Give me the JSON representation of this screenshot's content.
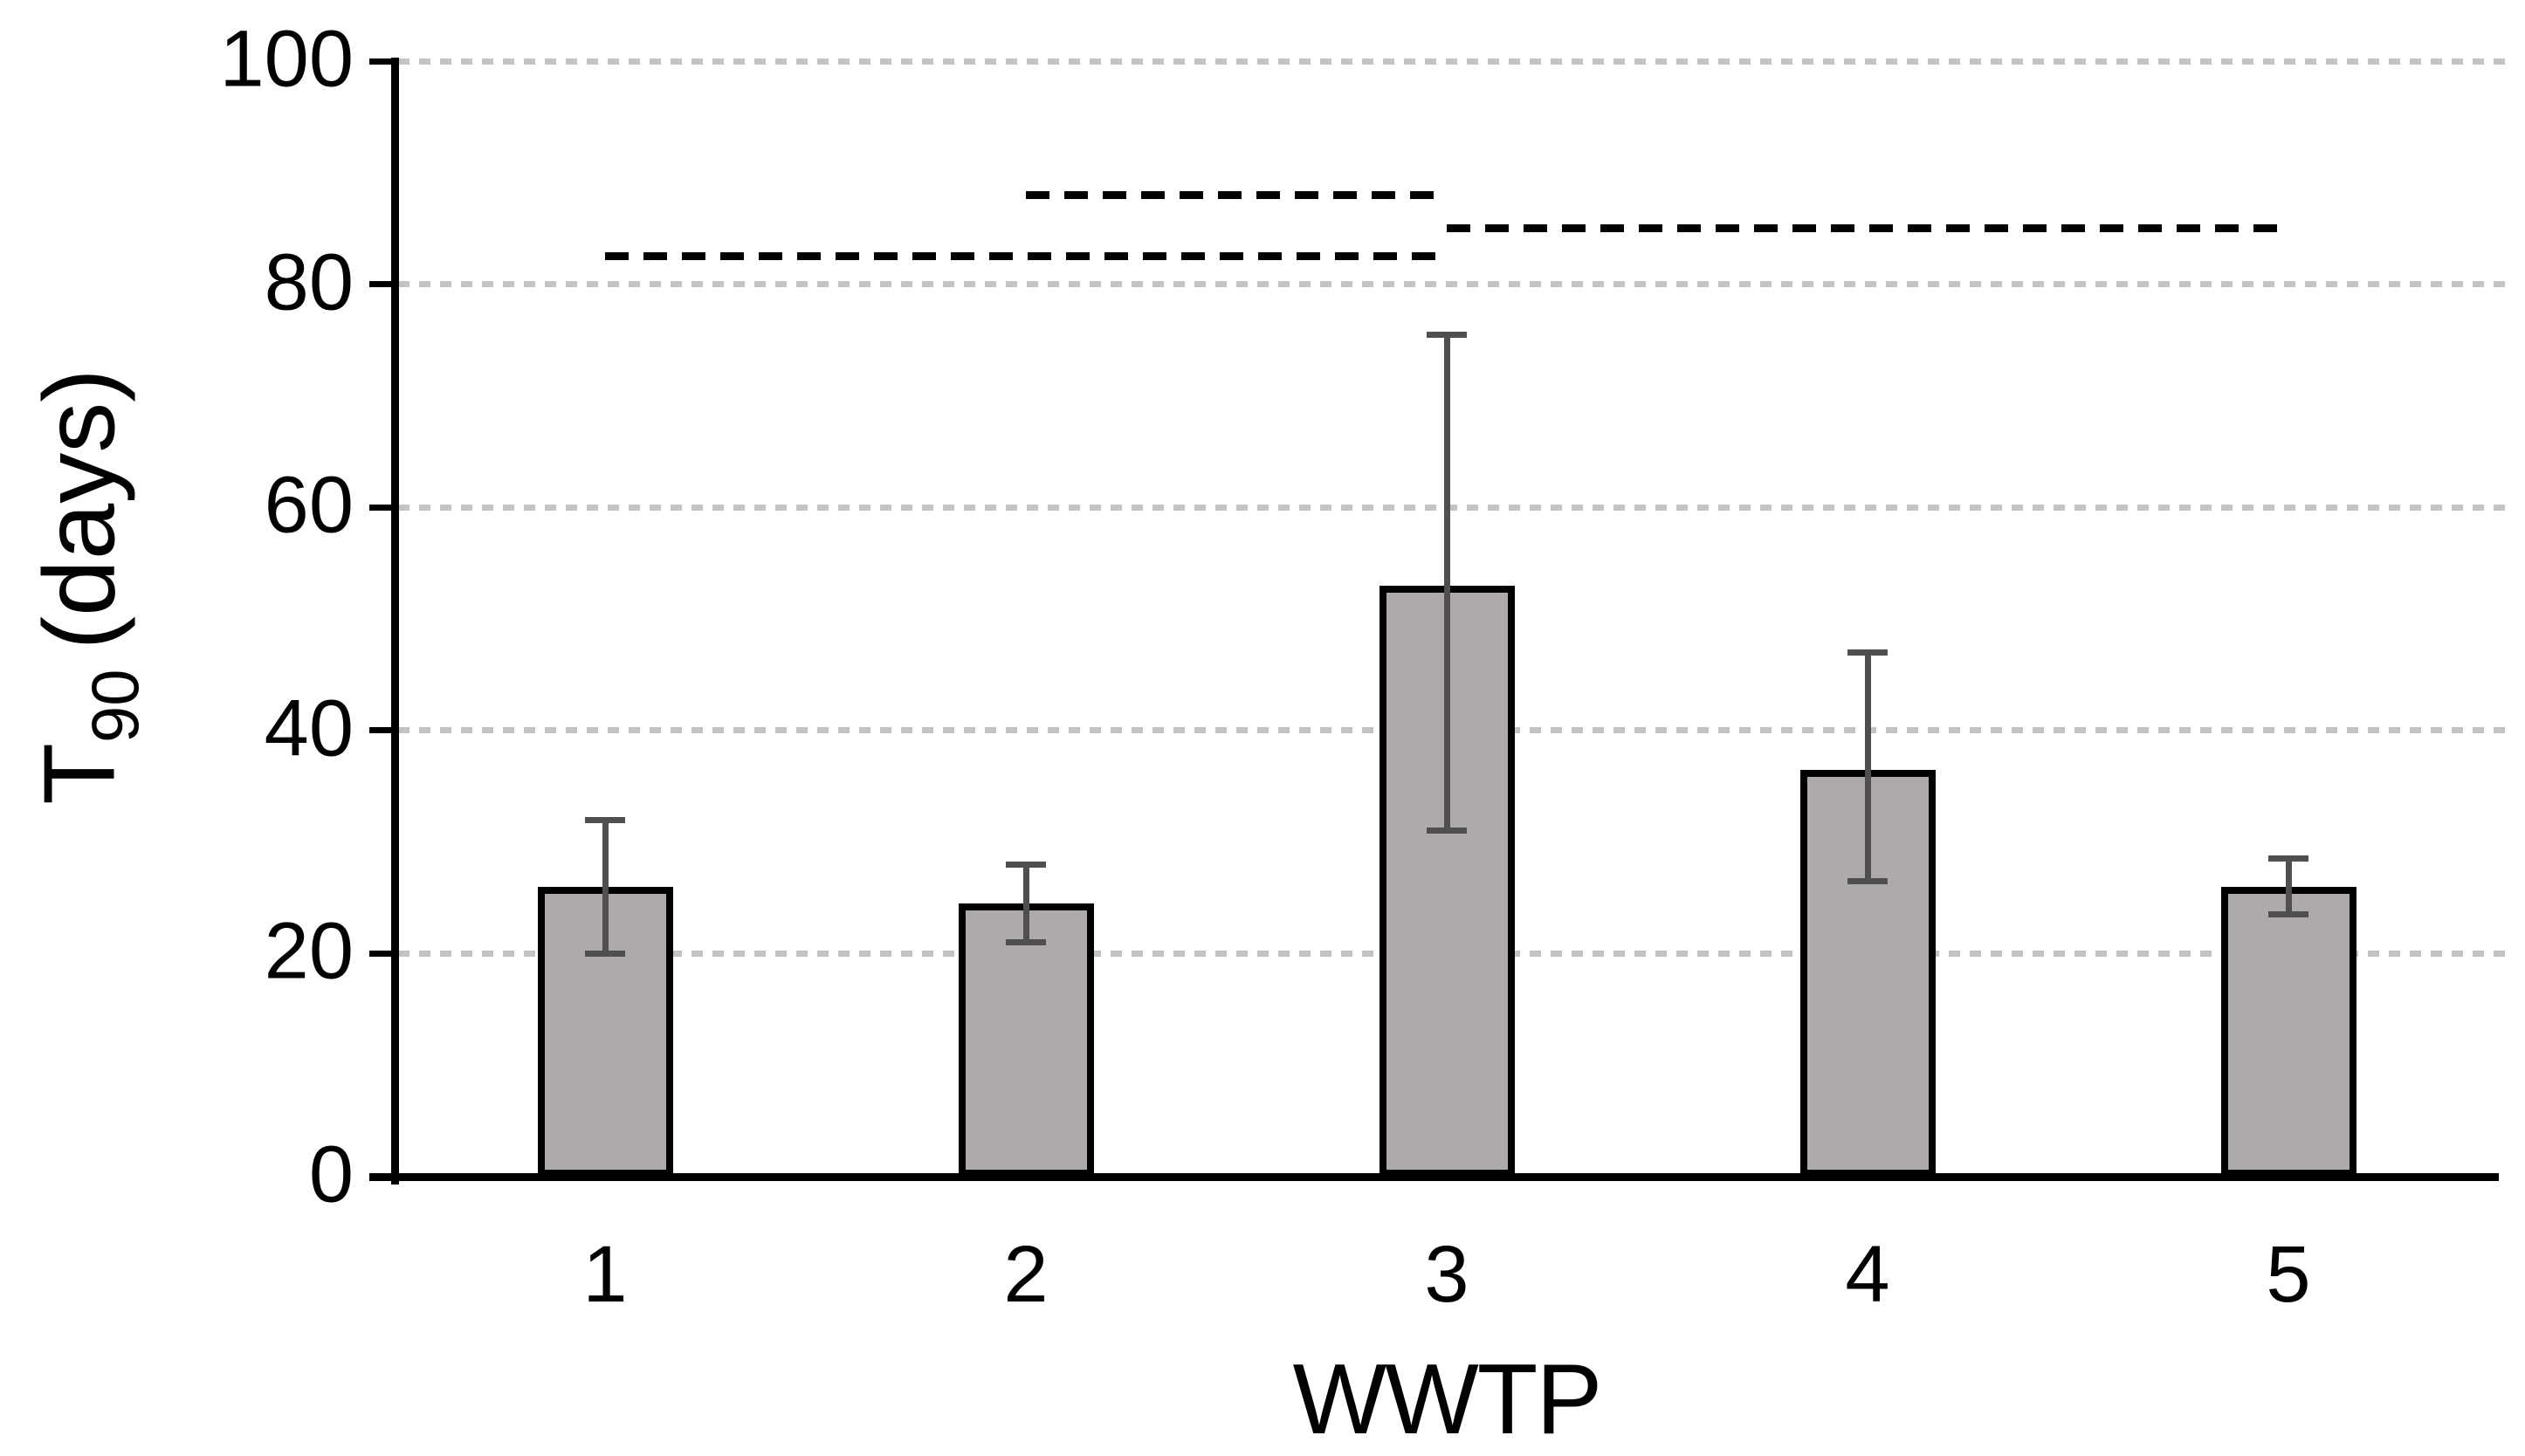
{
  "figure": {
    "background": "#ffffff"
  },
  "chart_data": {
    "type": "bar",
    "title": "",
    "xlabel": "WWTP",
    "ylabel": "T90 (days)",
    "ylabel_parts": {
      "base": "T",
      "sub": "90",
      "rest": "(days)"
    },
    "categories": [
      "1",
      "2",
      "3",
      "4",
      "5"
    ],
    "series": [
      {
        "name": "T90",
        "values": [
          26,
          24.5,
          53,
          36.5,
          26
        ]
      }
    ],
    "error_bars": {
      "upper": [
        32,
        28,
        75.5,
        47,
        28.5
      ],
      "lower": [
        20,
        21,
        31,
        26.5,
        23.5
      ]
    },
    "ylim": [
      0,
      100
    ],
    "yticks": [
      0,
      20,
      40,
      60,
      80,
      100
    ],
    "grid": "horizontal-dotted",
    "legend": "none",
    "significance_lines": [
      {
        "from": "1",
        "to": "3",
        "level": 82.5,
        "style": "dashed"
      },
      {
        "from": "2",
        "to": "3",
        "level": 88,
        "style": "dashed"
      },
      {
        "from": "3",
        "to": "5",
        "level": 85,
        "style": "dashed"
      }
    ],
    "colors": {
      "bar_fill": "#aeaaa9",
      "bar_border": "#000000",
      "error_bar": "#4f4f4f",
      "gridline": "#c3c3c3",
      "axis": "#000000",
      "significance_line": "#000000"
    }
  }
}
